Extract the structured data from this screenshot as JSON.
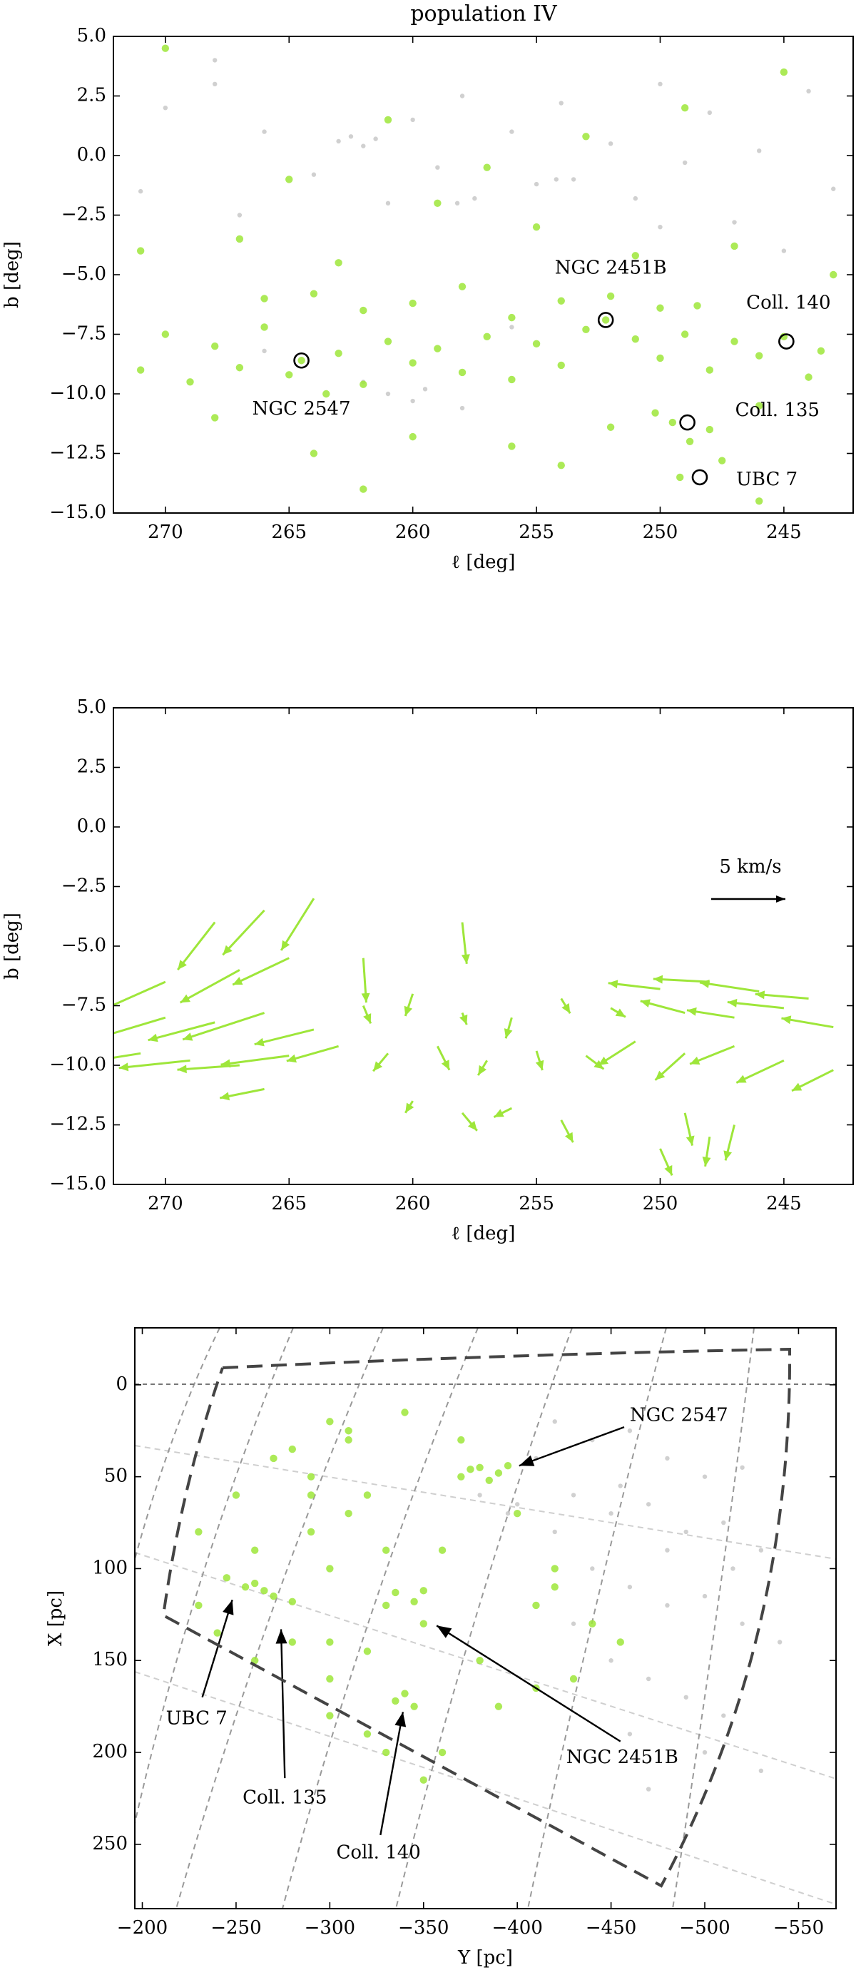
{
  "chart_data": [
    {
      "type": "scatter",
      "title": "population IV",
      "xlabel": "ℓ [deg]",
      "ylabel": "b [deg]",
      "xlim": [
        272.1,
        242.2
      ],
      "ylim": [
        -15,
        5
      ],
      "xticks": [
        270,
        265,
        260,
        255,
        250,
        245
      ],
      "yticks": [
        {
          "value": 5,
          "label": "5.0"
        },
        2.5,
        {
          "value": 0,
          "label": "0.0"
        },
        {
          "value": -2.5,
          "label": "−2.5"
        },
        {
          "value": -5,
          "label": "−5.0"
        },
        {
          "value": -7.5,
          "label": "−7.5"
        },
        {
          "value": -10,
          "label": "−10.0"
        },
        {
          "value": -12.5,
          "label": "−12.5"
        },
        {
          "value": -15,
          "label": "−15.0"
        }
      ],
      "series": [
        {
          "color": "#c8c8c8",
          "x": [
            270,
            268,
            266,
            263,
            262.5,
            262,
            261.5,
            260,
            258,
            257.5,
            256,
            254,
            253.5,
            252,
            250,
            248,
            246,
            244,
            271,
            267,
            264,
            261,
            259,
            258.2,
            255,
            254.2,
            251,
            249,
            247,
            243,
            262,
            261,
            260,
            259.5,
            258,
            266,
            256,
            250,
            245,
            268
          ],
          "y": [
            2,
            3,
            1,
            0.6,
            0.8,
            0.4,
            0.7,
            1.5,
            2.5,
            -1.8,
            1,
            2.2,
            -1,
            0.5,
            3,
            1.8,
            0.2,
            2.7,
            -1.5,
            -2.5,
            -0.8,
            -2,
            -0.5,
            -2,
            -1.2,
            -1,
            -1.8,
            -0.3,
            -2.8,
            -1.4,
            -9.5,
            -10,
            -10.3,
            -9.8,
            -10.6,
            -8.2,
            -7.2,
            -3,
            -4,
            4
          ]
        },
        {
          "color": "#9ee63a",
          "x": [
            270,
            268,
            266,
            264.5,
            263,
            261,
            259,
            257,
            255,
            253,
            251,
            249,
            247,
            245,
            243.5,
            271,
            269,
            267,
            265,
            263.5,
            262,
            260,
            258,
            256,
            254,
            252.2,
            250,
            248,
            246,
            244,
            266,
            264,
            262,
            260,
            258,
            256,
            254,
            252,
            250,
            248.5,
            249.5,
            248.8,
            249.2,
            248,
            247.5,
            250.2,
            271,
            267,
            263,
            259,
            255,
            251,
            247,
            243,
            268,
            264,
            260,
            256,
            252,
            246,
            265,
            261,
            257,
            253,
            249,
            245,
            270,
            262,
            254,
            246
          ],
          "y": [
            -7.5,
            -8,
            -7.2,
            -8.6,
            -8.3,
            -7.8,
            -8.1,
            -7.6,
            -7.9,
            -7.3,
            -7.7,
            -7.5,
            -7.8,
            -7.6,
            -8.2,
            -9,
            -9.5,
            -8.9,
            -9.2,
            -10,
            -9.6,
            -8.7,
            -9.1,
            -9.4,
            -8.8,
            -6.9,
            -8.5,
            -9,
            -8.4,
            -9.3,
            -6,
            -5.8,
            -6.5,
            -6.2,
            -5.5,
            -6.8,
            -6.1,
            -5.9,
            -6.4,
            -6.3,
            -11.2,
            -12,
            -13.5,
            -11.5,
            -12.8,
            -10.8,
            -4,
            -3.5,
            -4.5,
            -2,
            -3,
            -4.2,
            -3.8,
            -5,
            -11,
            -12.5,
            -11.8,
            -12.2,
            -11.4,
            -10.5,
            -1,
            1.5,
            -0.5,
            0.8,
            2,
            3.5,
            4.5,
            -14,
            -13,
            -14.5
          ]
        }
      ],
      "clusters": [
        {
          "label": "NGC 2547",
          "x": 264.5,
          "y": -8.6
        },
        {
          "label": "NGC 2451B",
          "x": 252.2,
          "y": -6.9
        },
        {
          "label": "Coll. 140",
          "x": 244.9,
          "y": -7.8
        },
        {
          "label": "Coll. 135",
          "x": 248.9,
          "y": -11.2
        },
        {
          "label": "UBC 7",
          "x": 248.4,
          "y": -13.5
        }
      ]
    },
    {
      "type": "quiver",
      "xlabel": "ℓ [deg]",
      "ylabel": "b [deg]",
      "xlim": [
        272.1,
        242.2
      ],
      "ylim": [
        -15,
        5
      ],
      "xticks": [
        270,
        265,
        260,
        255,
        250,
        245
      ],
      "yticks": [
        {
          "value": 5,
          "label": "5.0"
        },
        2.5,
        {
          "value": 0,
          "label": "0.0"
        },
        {
          "value": -2.5,
          "label": "−2.5"
        },
        {
          "value": -5,
          "label": "−5.0"
        },
        {
          "value": -7.5,
          "label": "−7.5"
        },
        {
          "value": -10,
          "label": "−10.0"
        },
        {
          "value": -12.5,
          "label": "−12.5"
        },
        {
          "value": -15,
          "label": "−15.0"
        }
      ],
      "color": "#9ee63a",
      "x": [
        270,
        268,
        266,
        264,
        271,
        269,
        267,
        265,
        263,
        268,
        266,
        264,
        270,
        267,
        265,
        262,
        260,
        258,
        256,
        254,
        252,
        261,
        259,
        257,
        255,
        253,
        260,
        258,
        256,
        254,
        250,
        248,
        246,
        244,
        249,
        247,
        245,
        243,
        251,
        249,
        247,
        245,
        243,
        249,
        248,
        250,
        247,
        266,
        262,
        258
      ],
      "y": [
        -8,
        -8.2,
        -7.8,
        -8.5,
        -9.5,
        -9.8,
        -10,
        -9.6,
        -9.2,
        -4,
        -3.5,
        -3,
        -6.5,
        -6,
        -5.5,
        -7.5,
        -7,
        -7.8,
        -8,
        -7.2,
        -7.6,
        -9.5,
        -9.2,
        -9.8,
        -9.4,
        -9.6,
        -11.5,
        -12,
        -11.8,
        -12.3,
        -6.8,
        -6.5,
        -6.9,
        -7.2,
        -7.8,
        -8,
        -7.6,
        -8.4,
        -9,
        -9.5,
        -9.2,
        -9.8,
        -10.2,
        -12,
        -13,
        -13.5,
        -12.5,
        -11,
        -5.5,
        -4
      ],
      "u": [
        -5,
        -4.5,
        -5.5,
        -4,
        -5,
        -4.8,
        -4.2,
        -4.6,
        -3.5,
        -2.5,
        -2.8,
        -2.2,
        -4.5,
        -4,
        -3.8,
        0.5,
        -0.5,
        0.3,
        -0.4,
        0.6,
        1,
        -1,
        0.8,
        -0.6,
        0.4,
        1.2,
        -0.5,
        1,
        -1.2,
        0.8,
        -3.5,
        -3.8,
        -4,
        -3.6,
        -3,
        -3.2,
        -3.8,
        -3.5,
        -2.5,
        -2,
        -3,
        -3.2,
        -2.8,
        0.5,
        -0.3,
        0.8,
        -0.6,
        -3,
        0.2,
        0.3
      ],
      "v": [
        -1.5,
        -1.2,
        -1.8,
        -1,
        -0.8,
        -0.5,
        -0.3,
        -0.6,
        -1,
        -3.2,
        -3,
        -3.5,
        -2,
        -2.2,
        -1.8,
        -1.2,
        -1.5,
        -0.8,
        -1.4,
        -1,
        -0.6,
        -1.2,
        -1.6,
        -1,
        -1.3,
        -0.9,
        -0.8,
        -1.2,
        -0.6,
        -1.5,
        0.4,
        0.2,
        0.6,
        0.3,
        0.8,
        0.5,
        0.4,
        0.6,
        -1.6,
        -1.8,
        -1.2,
        -1.5,
        -1.4,
        -2.2,
        -2,
        -1.8,
        -2.4,
        -0.6,
        -3,
        -2.8
      ],
      "key": {
        "value": 5,
        "label": "5 km/s"
      }
    },
    {
      "type": "scatter",
      "xlabel": "Y [pc]",
      "ylabel": "X [pc]",
      "xlim": [
        -196,
        -570
      ],
      "ylim": [
        285,
        -31
      ],
      "xticks": [
        {
          "value": -200,
          "label": "−200"
        },
        {
          "value": -250,
          "label": "−250"
        },
        {
          "value": -300,
          "label": "−300"
        },
        {
          "value": -350,
          "label": "−350"
        },
        {
          "value": -400,
          "label": "−400"
        },
        {
          "value": -450,
          "label": "−450"
        },
        {
          "value": -500,
          "label": "−500"
        },
        {
          "value": -550,
          "label": "−550"
        }
      ],
      "yticks": [
        0,
        50,
        100,
        150,
        200,
        250
      ],
      "series": [
        {
          "color": "#c8c8c8",
          "x": [
            -420,
            -440,
            -460,
            -480,
            -500,
            -520,
            -430,
            -450,
            -470,
            -490,
            -510,
            -530,
            -440,
            -460,
            -480,
            -500,
            -520,
            -540,
            -450,
            -470,
            -490,
            -510,
            -420,
            -400,
            -410,
            -460,
            -500,
            -530,
            -480,
            -455,
            -395,
            -380,
            -430,
            -470,
            -515
          ],
          "y": [
            20,
            30,
            25,
            40,
            50,
            45,
            60,
            70,
            65,
            80,
            75,
            90,
            100,
            110,
            120,
            115,
            130,
            140,
            150,
            160,
            170,
            180,
            80,
            65,
            40,
            190,
            200,
            210,
            90,
            55,
            70,
            60,
            130,
            220,
            100
          ]
        },
        {
          "color": "#9ee63a",
          "x": [
            -380,
            -390,
            -370,
            -395,
            -385,
            -375,
            -335,
            -345,
            -330,
            -350,
            -245,
            -255,
            -260,
            -270,
            -280,
            -265,
            -340,
            -335,
            -345,
            -230,
            -240,
            -300,
            -310,
            -320,
            -290,
            -300,
            -360,
            -400,
            -420,
            -440,
            -260,
            -280,
            -300,
            -320,
            -350,
            -380,
            -410,
            -430,
            -455,
            -230,
            -250,
            -270,
            -290,
            -310,
            -330,
            -300,
            -320,
            -360,
            -390,
            -410,
            -280,
            -310,
            -340,
            -370,
            -330,
            -350,
            -300,
            -260,
            -290,
            -420
          ],
          "y": [
            45,
            48,
            50,
            44,
            52,
            46,
            113,
            118,
            120,
            112,
            105,
            110,
            108,
            115,
            118,
            112,
            168,
            172,
            175,
            120,
            135,
            20,
            30,
            60,
            80,
            100,
            90,
            70,
            110,
            130,
            150,
            140,
            160,
            145,
            130,
            150,
            120,
            160,
            140,
            80,
            60,
            40,
            50,
            70,
            90,
            180,
            190,
            200,
            175,
            165,
            35,
            25,
            15,
            30,
            200,
            215,
            140,
            90,
            60,
            100
          ]
        }
      ],
      "annotations": [
        "NGC 2547",
        "NGC 2451B",
        "UBC 7",
        "Coll. 135",
        "Coll. 140"
      ]
    }
  ]
}
